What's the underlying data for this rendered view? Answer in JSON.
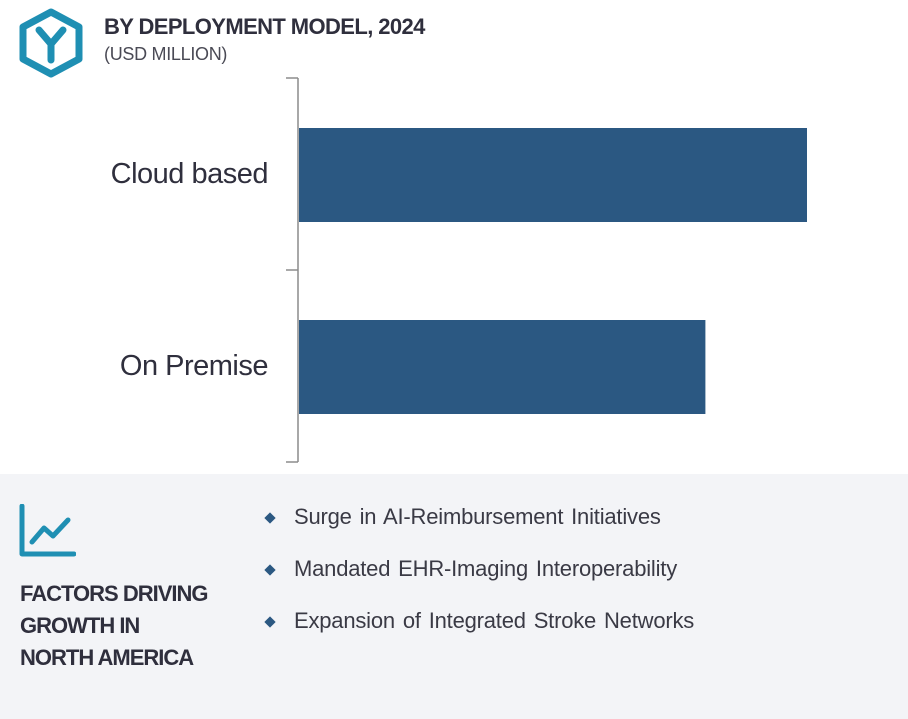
{
  "header": {
    "title": "BY DEPLOYMENT MODEL, 2024",
    "subtitle": "(USD MILLION)",
    "logo_icon": "hexagon-y-logo-icon",
    "accent_color": "#1f8fb3"
  },
  "chart_data": {
    "type": "bar",
    "orientation": "horizontal",
    "categories": [
      "Cloud based",
      "On Premise"
    ],
    "values": [
      100,
      80
    ],
    "title": "BY DEPLOYMENT MODEL, 2024",
    "subtitle": "(USD MILLION)",
    "xlabel": "",
    "ylabel": "",
    "xlim": [
      0,
      100
    ],
    "grid": false,
    "legend": "none",
    "bar_color": "#2b5882"
  },
  "factors": {
    "icon": "trend-line-icon",
    "heading_lines": [
      "FACTORS DRIVING",
      "GROWTH IN",
      "NORTH AMERICA"
    ],
    "items": [
      "Surge in AI-Reimbursement Initiatives",
      "Mandated EHR-Imaging Interoperability",
      "Expansion of Integrated Stroke Networks"
    ],
    "bullet_color": "#2b5882"
  }
}
